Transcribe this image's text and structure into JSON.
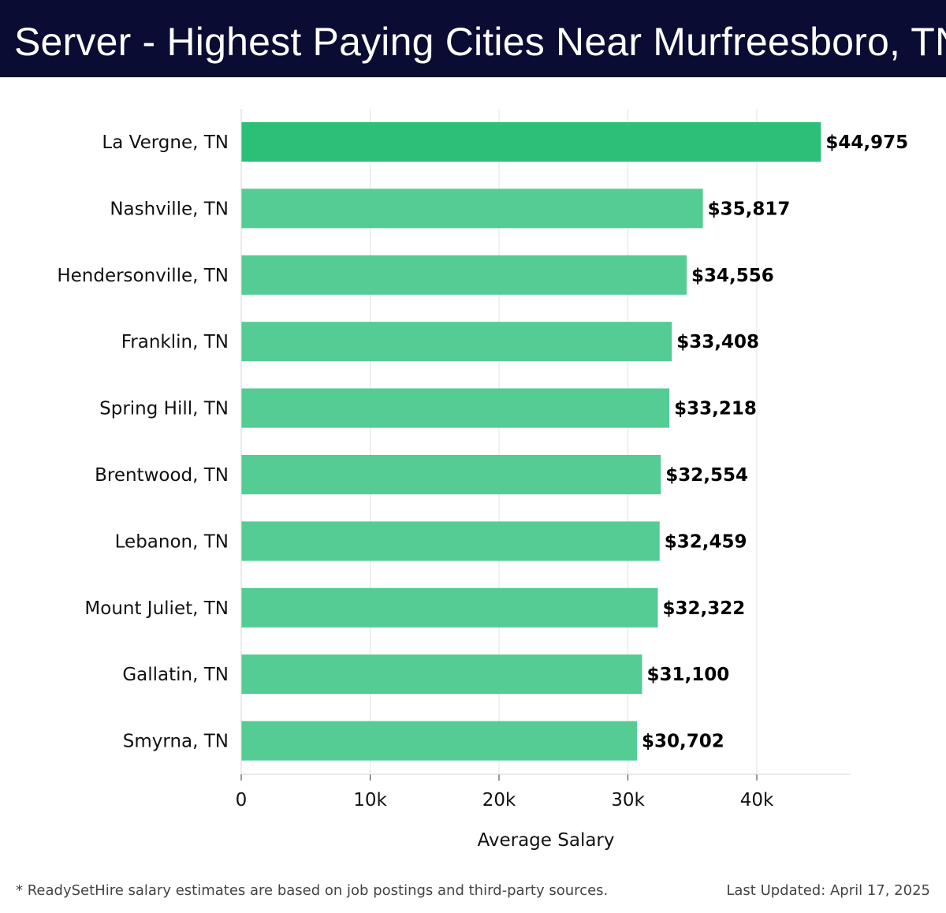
{
  "header": {
    "title": "Server - Highest Paying Cities Near Murfreesboro, TN"
  },
  "chart_data": {
    "type": "bar",
    "orientation": "horizontal",
    "title": "Server - Highest Paying Cities Near Murfreesboro, TN",
    "xlabel": "Average Salary",
    "ylabel": "",
    "xlim": [
      0,
      47500
    ],
    "grid": true,
    "categories": [
      "La Vergne, TN",
      "Nashville, TN",
      "Hendersonville, TN",
      "Franklin, TN",
      "Spring Hill, TN",
      "Brentwood, TN",
      "Lebanon, TN",
      "Mount Juliet, TN",
      "Gallatin, TN",
      "Smyrna, TN"
    ],
    "values": [
      44975,
      35817,
      34556,
      33408,
      33218,
      32554,
      32459,
      32322,
      31100,
      30702
    ],
    "value_labels": [
      "$44,975",
      "$35,817",
      "$34,556",
      "$33,408",
      "$33,218",
      "$32,554",
      "$32,459",
      "$32,322",
      "$31,100",
      "$30,702"
    ],
    "ticks": [
      0,
      10000,
      20000,
      30000,
      40000
    ],
    "tick_labels": [
      "0",
      "10k",
      "20k",
      "30k",
      "40k"
    ],
    "colors": {
      "top_bar": "#2bbf78",
      "bar": "#54cc94",
      "header_bg": "#0a0c33"
    }
  },
  "footer": {
    "note": "* ReadySetHire salary estimates are based on job postings and third-party sources.",
    "updated": "Last Updated: April 17, 2025"
  }
}
